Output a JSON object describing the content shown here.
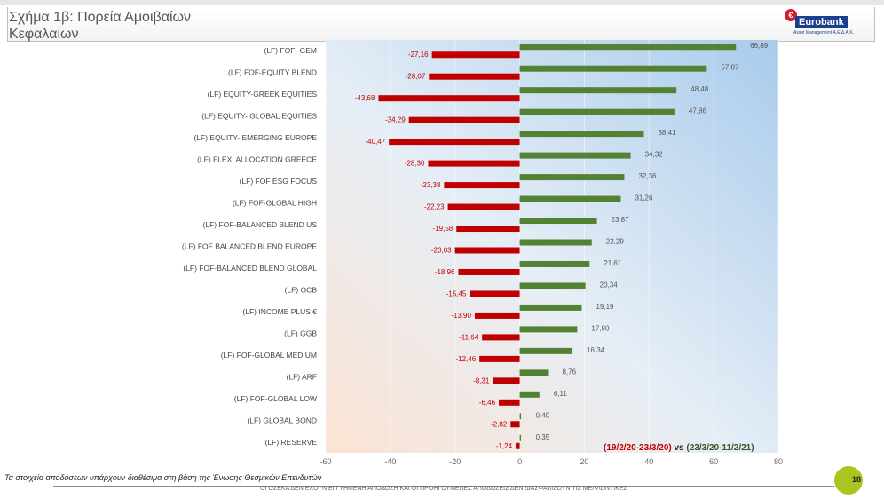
{
  "header": {
    "title": "Σχήμα 1β: Πορεία Αμοιβαίων Κεφαλαίων",
    "logo_name": "Eurobank",
    "logo_sub": "Asset Management Α.Ε.Δ.Α.Κ."
  },
  "chart_data": {
    "type": "bar",
    "orientation": "horizontal",
    "title": "Σχήμα 1β: Πορεία Αμοιβαίων Κεφαλαίων",
    "categories": [
      "(LF) FOF- GEM",
      "(LF) FOF-EQUITY BLEND",
      "(LF) EQUITY-GREEK EQUITIES",
      "(LF) EQUITY- GLOBAL EQUITIES",
      "(LF) EQUITY- EMERGING EUROPE",
      "(LF) FLEXI ALLOCATION GREECE",
      "(LF) FOF ESG FOCUS",
      "(LF) FOF-GLOBAL HIGH",
      "(LF) FOF-BALANCED BLEND US",
      "(LF) FOF BALANCED BLEND EUROPE",
      "(LF) FOF-BALANCED BLEND GLOBAL",
      "(LF) GCB",
      "(LF) INCOME PLUS €",
      "(LF) GGB",
      "(LF) FOF-GLOBAL MEDIUM",
      "(LF) ARF",
      "(LF) FOF-GLOBAL LOW",
      "(LF) GLOBAL BOND",
      "(LF) RESERVE"
    ],
    "series": [
      {
        "name": "(23/3/20-11/2/21)",
        "color": "#548235",
        "values": [
          66.89,
          57.87,
          48.48,
          47.86,
          38.41,
          34.32,
          32.36,
          31.26,
          23.87,
          22.29,
          21.61,
          20.34,
          19.19,
          17.8,
          16.34,
          8.76,
          6.11,
          0.4,
          0.35
        ],
        "labels": [
          "66,89",
          "57,87",
          "48,48",
          "47,86",
          "38,41",
          "34,32",
          "32,36",
          "31,26",
          "23,87",
          "22,29",
          "21,61",
          "20,34",
          "19,19",
          "17,80",
          "16,34",
          "8,76",
          "6,11",
          "0,40",
          "0,35"
        ]
      },
      {
        "name": "(19/2/20-23/3/20)",
        "color": "#c00000",
        "values": [
          -27.16,
          -28.07,
          -43.68,
          -34.29,
          -40.47,
          -28.3,
          -23.38,
          -22.23,
          -19.58,
          -20.03,
          -18.96,
          -15.45,
          -13.9,
          -11.64,
          -12.46,
          -8.31,
          -6.46,
          -2.82,
          -1.24
        ],
        "labels": [
          "-27,16",
          "-28,07",
          "-43,68",
          "-34,29",
          "-40,47",
          "-28,30",
          "-23,38",
          "-22,23",
          "-19,58",
          "-20,03",
          "-18,96",
          "-15,45",
          "-13,90",
          "-11,64",
          "-12,46",
          "-8,31",
          "-6,46",
          "-2,82",
          "-1,24"
        ]
      }
    ],
    "xlim": [
      -60,
      80
    ],
    "xticks": [
      -60,
      -40,
      -20,
      0,
      20,
      40,
      60,
      80
    ],
    "legend": {
      "red": "(19/2/20-23/3/20)",
      "vs": "vs",
      "green": "(23/3/20-11/2/21)",
      "placement": "bottom-right"
    }
  },
  "footer": {
    "note": "Τα στοιχεία αποδόσεων υπάρχουν διαθέσιμα στη βάση της Ένωσης Θεσμικών Επενδυτών",
    "disclaimer": "ΟΙ ΟΣΕΚΑ ΔΕΝ ΕΧΟΥΝ ΕΓΓΥΗΜΕΝΗ ΑΠΟΔΟΣΗ ΚΑΙ ΟΙ ΠΡΟΗΓΟΥΜΕΝΕΣ ΑΠΟΔΟΣΕΙΣ ΔΕΝ ΔΙΑΣΦΑΛΙΖΟΥΝ ΤΙΣ ΜΕΛΛΟΝΤΙΚΕΣ",
    "page": "18"
  }
}
